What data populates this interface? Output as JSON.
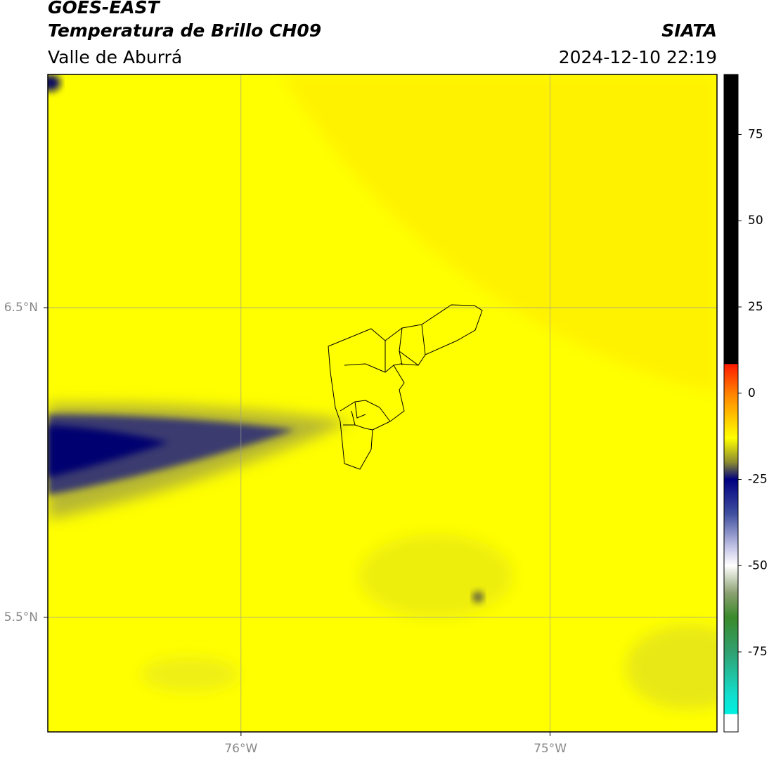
{
  "chart_data": {
    "type": "map",
    "title": "GOES-EAST",
    "subtitle": "Temperatura de Brillo CH09",
    "source": "SIATA",
    "region": "Valle de Aburrá",
    "datetime": "2024-12-10 22:19",
    "xlim": [
      -76.625,
      -74.46
    ],
    "ylim": [
      5.13,
      7.253
    ],
    "xticks": [
      {
        "value": -76,
        "label": "76°W"
      },
      {
        "value": -75,
        "label": "75°W"
      }
    ],
    "yticks": [
      {
        "value": 6.5,
        "label": "6.5°N"
      },
      {
        "value": 5.5,
        "label": "5.5°N"
      }
    ],
    "grid": true,
    "colorbar": {
      "lim": [
        -98.2,
        92.4
      ],
      "ticks": [
        75,
        50,
        25,
        0,
        -25,
        -50,
        -75
      ],
      "stops": [
        {
          "value": 92.4,
          "color": "#000000"
        },
        {
          "value": 8.5,
          "color": "#000000"
        },
        {
          "value": 8.4,
          "color": "#ff1a00"
        },
        {
          "value": 0,
          "color": "#ff8000"
        },
        {
          "value": -8,
          "color": "#ffd000"
        },
        {
          "value": -13,
          "color": "#ffff00"
        },
        {
          "value": -20,
          "color": "#8c8c30"
        },
        {
          "value": -25,
          "color": "#000080"
        },
        {
          "value": -35,
          "color": "#4050a0"
        },
        {
          "value": -45,
          "color": "#c8c8e8"
        },
        {
          "value": -50,
          "color": "#ffffff"
        },
        {
          "value": -58,
          "color": "#8aa070"
        },
        {
          "value": -65,
          "color": "#3a8a2a"
        },
        {
          "value": -75,
          "color": "#30a070"
        },
        {
          "value": -88,
          "color": "#10e0d0"
        },
        {
          "value": -93,
          "color": "#00f0e0"
        },
        {
          "value": -93.1,
          "color": "#ffffff"
        },
        {
          "value": -98.2,
          "color": "#ffffff"
        }
      ]
    }
  }
}
